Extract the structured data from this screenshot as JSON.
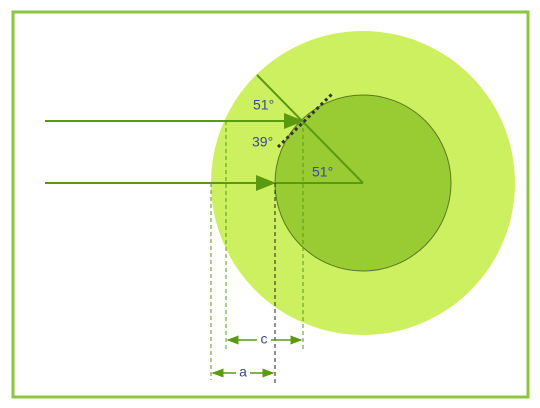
{
  "angles": [
    "51°",
    "39°",
    "51°"
  ],
  "dimensions": [
    "c",
    "a"
  ]
}
